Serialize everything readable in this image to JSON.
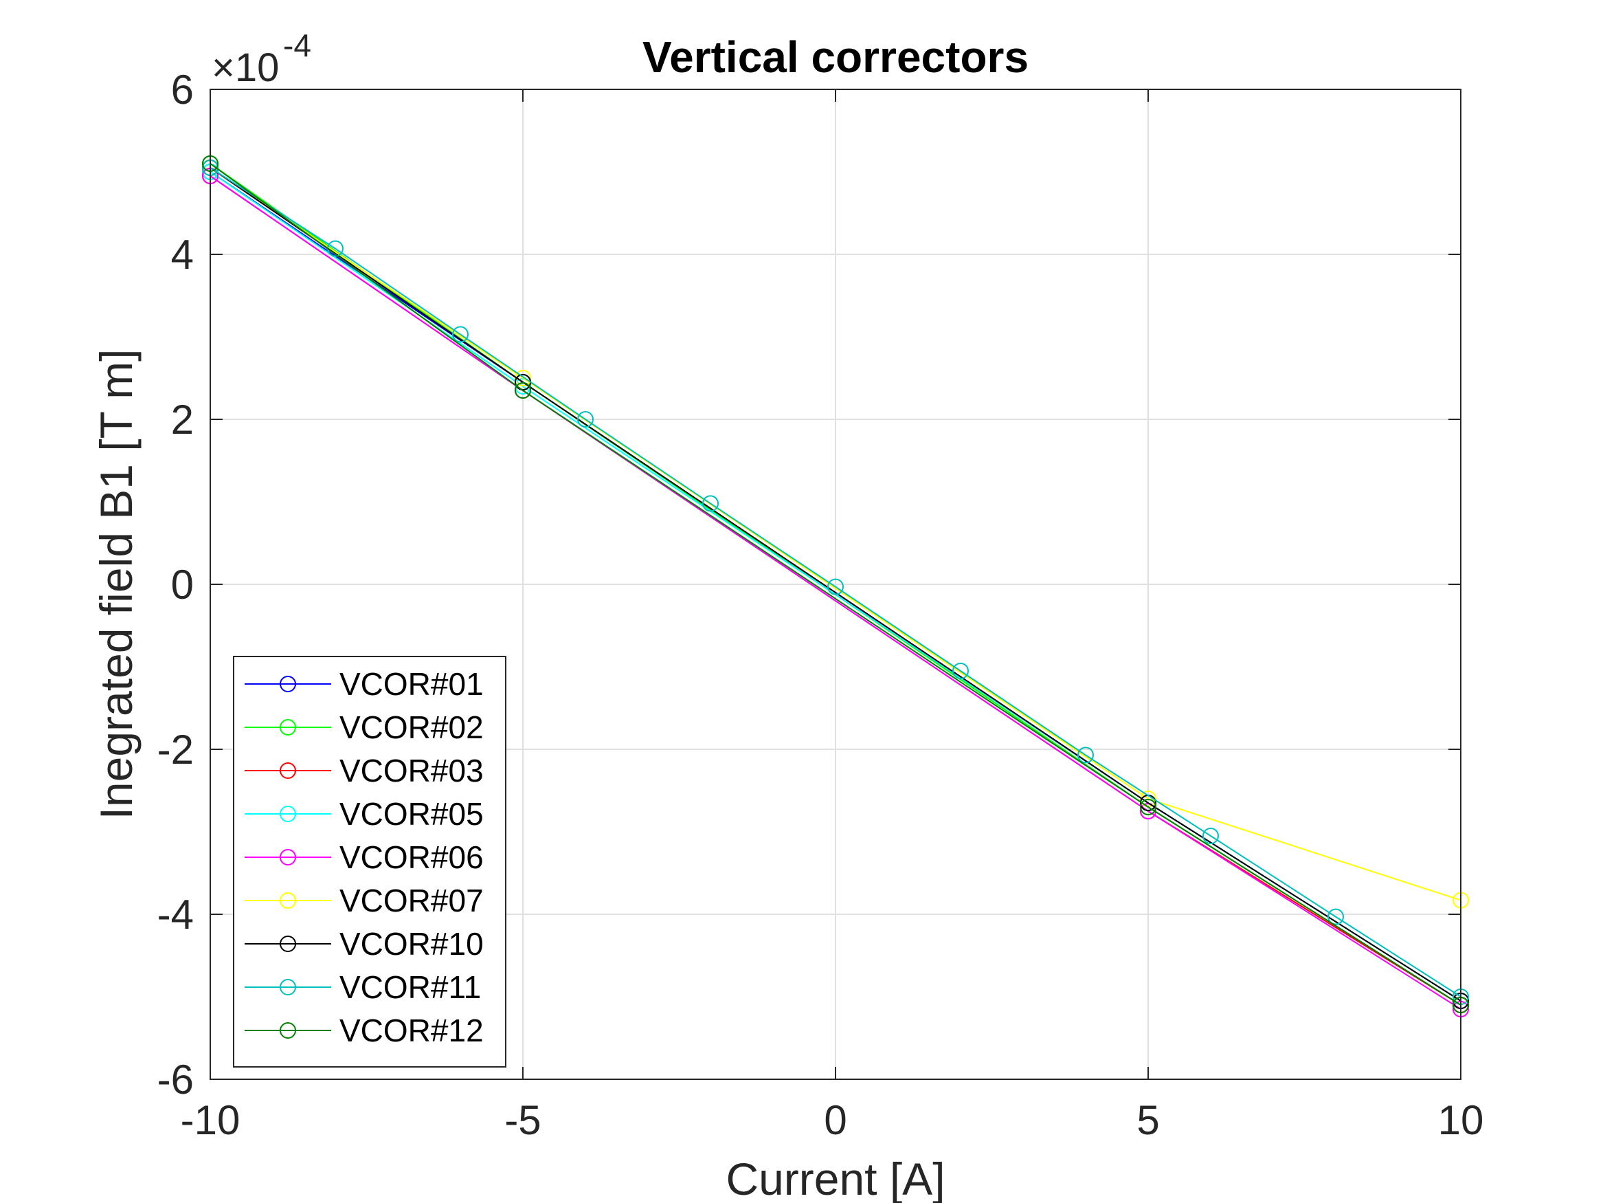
{
  "chart_data": {
    "type": "line",
    "title": "Vertical correctors",
    "xlabel": "Current [A]",
    "ylabel": "Inegrated field B1 [T m]",
    "y_exponent_label": "×10",
    "y_exponent_power": "-4",
    "xlim": [
      -10,
      10
    ],
    "ylim": [
      -6,
      6
    ],
    "x_ticks": [
      -10,
      -5,
      0,
      5,
      10
    ],
    "x_tick_labels": [
      "-10",
      "-5",
      "0",
      "5",
      "10"
    ],
    "y_ticks": [
      -6,
      -4,
      -2,
      0,
      2,
      4,
      6
    ],
    "y_tick_labels": [
      "-6",
      "-4",
      "-2",
      "0",
      "2",
      "4",
      "6"
    ],
    "grid": true,
    "legend_position": "bottom-left",
    "marker": "open-circle",
    "series": [
      {
        "name": "VCOR#01",
        "color": "#0000ff",
        "x": [
          -10,
          -5,
          5,
          10
        ],
        "y": [
          5.0,
          2.45,
          -2.65,
          -5.05
        ]
      },
      {
        "name": "VCOR#02",
        "color": "#00ff00",
        "x": [
          -10,
          -5,
          5,
          10
        ],
        "y": [
          5.1,
          2.45,
          -2.7,
          -5.1
        ]
      },
      {
        "name": "VCOR#03",
        "color": "#ff0000",
        "x": [
          -10,
          -5,
          5,
          10
        ],
        "y": [
          4.95,
          2.35,
          -2.75,
          -5.1
        ]
      },
      {
        "name": "VCOR#05",
        "color": "#00ffff",
        "x": [
          -10,
          -5,
          5,
          10
        ],
        "y": [
          5.0,
          2.4,
          -2.65,
          -5.05
        ]
      },
      {
        "name": "VCOR#06",
        "color": "#ff00ff",
        "x": [
          -10,
          -5,
          5,
          10
        ],
        "y": [
          4.95,
          2.35,
          -2.75,
          -5.15
        ]
      },
      {
        "name": "VCOR#07",
        "color": "#ffff00",
        "x": [
          -10,
          -5,
          5,
          10
        ],
        "y": [
          5.05,
          2.5,
          -2.6,
          -3.83
        ]
      },
      {
        "name": "VCOR#10",
        "color": "#000000",
        "x": [
          -10,
          -5,
          5,
          10
        ],
        "y": [
          5.05,
          2.45,
          -2.65,
          -5.05
        ]
      },
      {
        "name": "VCOR#11",
        "color": "#00bfbf",
        "x": [
          -10,
          -8,
          -6,
          -4,
          -2,
          0,
          2,
          4,
          6,
          8,
          10
        ],
        "y": [
          5.05,
          4.07,
          3.03,
          2.0,
          0.98,
          -0.03,
          -1.05,
          -2.07,
          -3.05,
          -4.03,
          -5.0
        ]
      },
      {
        "name": "VCOR#12",
        "color": "#008000",
        "x": [
          -10,
          -5,
          5,
          10
        ],
        "y": [
          5.1,
          2.35,
          -2.7,
          -5.1
        ]
      }
    ]
  }
}
